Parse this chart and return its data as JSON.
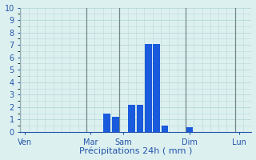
{
  "xlabel": "Précipitations 24h ( mm )",
  "background_color": "#ddf0f0",
  "grid_color": "#b8d8d8",
  "bar_color": "#1a5adc",
  "ylim": [
    0,
    10
  ],
  "yticks": [
    0,
    1,
    2,
    3,
    4,
    5,
    6,
    7,
    8,
    9,
    10
  ],
  "num_slots": 28,
  "bar_values": [
    0,
    0,
    0,
    0,
    0,
    0,
    0,
    0,
    0,
    0,
    1.5,
    1.2,
    0,
    2.2,
    2.2,
    7.1,
    7.1,
    0.5,
    0,
    0,
    0.4,
    0,
    0,
    0,
    0,
    0,
    0,
    0
  ],
  "tick_positions": [
    0,
    8,
    12,
    20,
    26
  ],
  "tick_labels": [
    "Ven",
    "Mar",
    "Sam",
    "Dim",
    "Lun"
  ],
  "xlabel_fontsize": 8,
  "tick_fontsize": 7
}
